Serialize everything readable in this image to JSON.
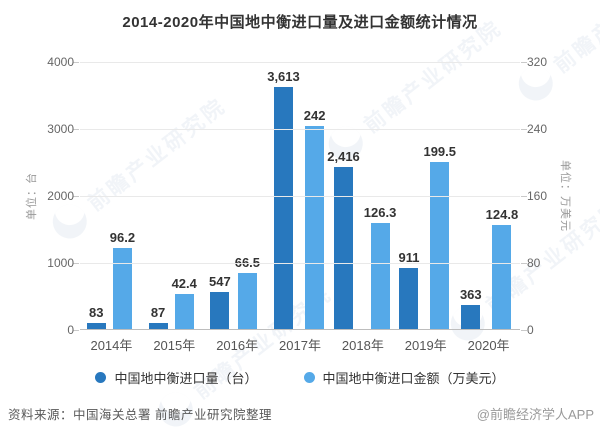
{
  "title": "2014-2020年中国地中衡进口量及进口金额统计情况",
  "chart_data": {
    "type": "bar",
    "categories": [
      "2014年",
      "2015年",
      "2016年",
      "2017年",
      "2018年",
      "2019年",
      "2020年"
    ],
    "series": [
      {
        "name": "中国地中衡进口量（台）",
        "axis": "left",
        "color": "#2878BE",
        "values": [
          83,
          87,
          547,
          3613,
          2416,
          911,
          363
        ],
        "labels": [
          "83",
          "87",
          "547",
          "3,613",
          "2,416",
          "911",
          "363"
        ]
      },
      {
        "name": "中国地中衡进口金额（万美元）",
        "axis": "right",
        "color": "#55A9E8",
        "values": [
          96.2,
          42.4,
          66.5,
          242,
          126.3,
          199.5,
          124.8
        ],
        "labels": [
          "96.2",
          "42.4",
          "66.5",
          "242",
          "126.3",
          "199.5",
          "124.8"
        ]
      }
    ],
    "left_axis": {
      "name": "单位：台",
      "ticks": [
        0,
        1000,
        2000,
        3000,
        4000
      ],
      "max": 4000
    },
    "right_axis": {
      "name": "单位：万美元",
      "ticks": [
        0,
        80,
        160,
        240,
        320
      ],
      "max": 320
    },
    "grid": true,
    "legend_position": "bottom"
  },
  "footer": {
    "source": "资料来源：中国海关总署  前瞻产业研究院整理",
    "credit": "@前瞻经济学人APP"
  },
  "watermark": {
    "text": "前瞻产业研究院"
  },
  "colors": {
    "volume_bar": "#2878BE",
    "amount_bar": "#55A9E8",
    "gridline": "#e9e9e9",
    "axis_line": "#bdbdbd",
    "title_text": "#333333",
    "tick_text": "#666666"
  }
}
